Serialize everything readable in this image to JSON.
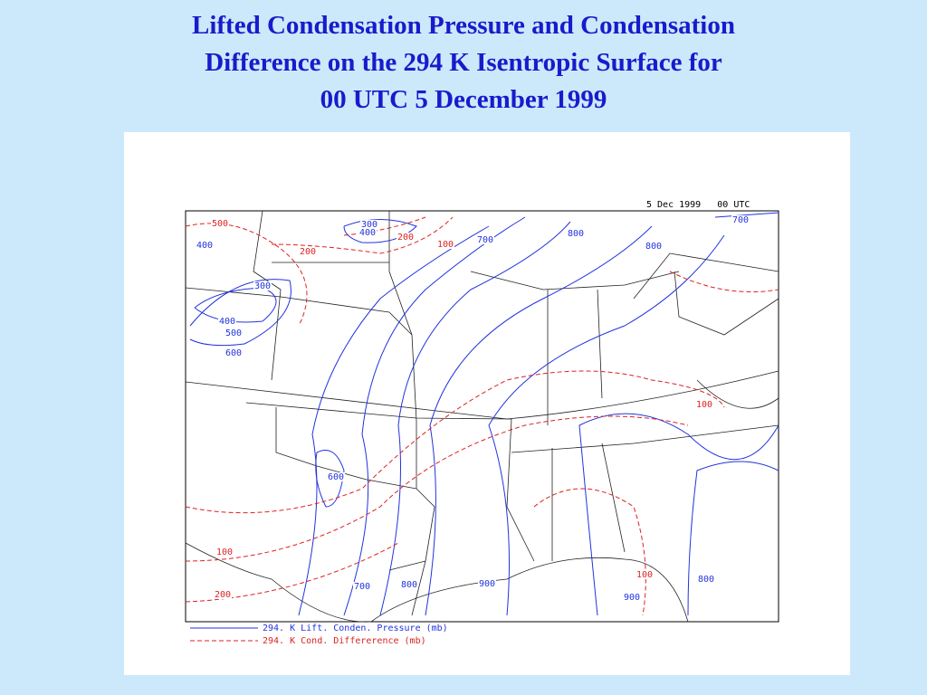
{
  "title_lines": [
    "Lifted Condensation Pressure and Condensation",
    "Difference on the 294 K Isentropic Surface for",
    "00 UTC 5 December 1999"
  ],
  "map": {
    "valid_time": "5 Dec 1999   00 UTC",
    "pressure_labels": [
      "400",
      "300",
      "400",
      "500",
      "600",
      "300",
      "400",
      "700",
      "800",
      "800",
      "700",
      "600",
      "700",
      "800",
      "900",
      "900",
      "800"
    ],
    "difference_labels": [
      "500",
      "200",
      "200",
      "100",
      "100",
      "200",
      "100",
      "100"
    ],
    "legend": [
      "294. K Lift. Conden. Pressure (mb)",
      "294. K Cond. Differerence (mb)"
    ]
  }
}
